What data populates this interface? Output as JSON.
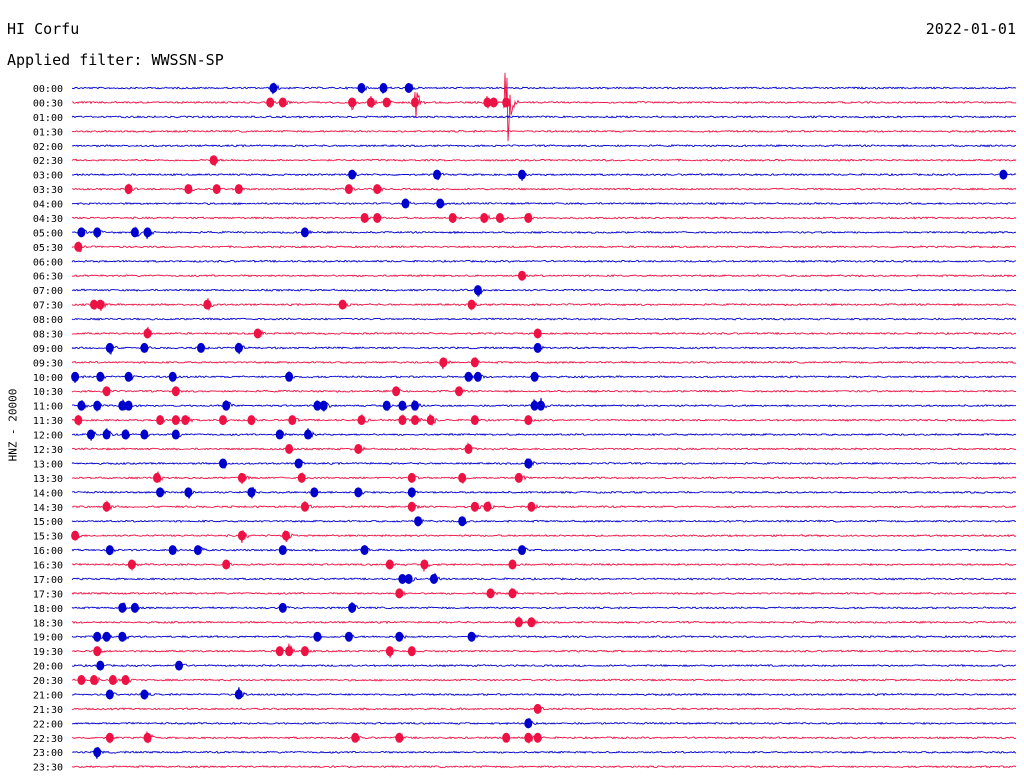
{
  "header": {
    "station": "HI Corfu",
    "date": "2022-01-01",
    "filter_text": "Applied filter: WWSSN-SP"
  },
  "chart_data": {
    "type": "line",
    "subtype": "helicorder",
    "ylabel": "HNZ - 20000",
    "rows": [
      "00:00",
      "00:30",
      "01:00",
      "01:30",
      "02:00",
      "02:30",
      "03:00",
      "03:30",
      "04:00",
      "04:30",
      "05:00",
      "05:30",
      "06:00",
      "06:30",
      "07:00",
      "07:30",
      "08:00",
      "08:30",
      "09:00",
      "09:30",
      "10:00",
      "10:30",
      "11:00",
      "11:30",
      "12:00",
      "12:30",
      "13:00",
      "13:30",
      "14:00",
      "14:30",
      "15:00",
      "15:30",
      "16:00",
      "16:30",
      "17:00",
      "17:30",
      "18:00",
      "18:30",
      "19:00",
      "19:30",
      "20:00",
      "20:30",
      "21:00",
      "21:30",
      "22:00",
      "22:30",
      "23:00",
      "23:30"
    ],
    "colors": [
      "#0000cc",
      "#ee1144"
    ],
    "trace_minutes": 30,
    "events": [
      {
        "row": 0,
        "minutes": [
          6.4,
          9.2,
          9.9,
          10.7
        ]
      },
      {
        "row": 1,
        "minutes": [
          6.3,
          6.7,
          8.9,
          9.5,
          10.0,
          13.2,
          13.4
        ]
      },
      {
        "row": 2,
        "minutes": []
      },
      {
        "row": 3,
        "minutes": []
      },
      {
        "row": 4,
        "minutes": []
      },
      {
        "row": 5,
        "minutes": [
          4.5
        ]
      },
      {
        "row": 6,
        "minutes": [
          8.9,
          11.6,
          14.3,
          29.6
        ]
      },
      {
        "row": 7,
        "minutes": [
          1.8,
          3.7,
          4.6,
          5.3,
          8.8,
          9.7
        ]
      },
      {
        "row": 8,
        "minutes": [
          10.6,
          11.7
        ]
      },
      {
        "row": 9,
        "minutes": [
          9.3,
          9.7,
          12.1,
          13.1,
          13.6,
          14.5
        ]
      },
      {
        "row": 10,
        "minutes": [
          0.3,
          0.8,
          2.0,
          2.4,
          7.4
        ]
      },
      {
        "row": 11,
        "minutes": [
          0.2
        ]
      },
      {
        "row": 12,
        "minutes": []
      },
      {
        "row": 13,
        "minutes": [
          14.3
        ]
      },
      {
        "row": 14,
        "minutes": [
          12.9
        ]
      },
      {
        "row": 15,
        "minutes": [
          0.7,
          0.9,
          4.3,
          8.6,
          12.7
        ]
      },
      {
        "row": 16,
        "minutes": []
      },
      {
        "row": 17,
        "minutes": [
          2.4,
          5.9,
          14.8
        ]
      },
      {
        "row": 18,
        "minutes": [
          1.2,
          2.3,
          4.1,
          5.3,
          14.8
        ]
      },
      {
        "row": 19,
        "minutes": [
          11.8,
          12.8
        ]
      },
      {
        "row": 20,
        "minutes": [
          0.1,
          0.9,
          1.8,
          3.2,
          6.9,
          12.6,
          12.9,
          14.7
        ]
      },
      {
        "row": 21,
        "minutes": [
          1.1,
          3.3,
          10.3,
          12.3
        ]
      },
      {
        "row": 22,
        "minutes": [
          0.3,
          0.8,
          1.6,
          1.8,
          4.9,
          7.8,
          8.0,
          10.0,
          10.5,
          10.9,
          14.7,
          14.9
        ]
      },
      {
        "row": 23,
        "minutes": [
          0.2,
          2.8,
          3.3,
          3.6,
          4.8,
          5.7,
          7.0,
          9.2,
          10.5,
          10.9,
          11.4,
          12.8,
          14.5
        ]
      },
      {
        "row": 24,
        "minutes": [
          0.6,
          1.1,
          1.7,
          2.3,
          3.3,
          6.6,
          7.5
        ]
      },
      {
        "row": 25,
        "minutes": [
          6.9,
          9.1,
          12.6
        ]
      },
      {
        "row": 26,
        "minutes": [
          4.8,
          7.2,
          14.5
        ]
      },
      {
        "row": 27,
        "minutes": [
          2.7,
          5.4,
          7.3,
          10.8,
          12.4,
          14.2
        ]
      },
      {
        "row": 28,
        "minutes": [
          2.8,
          3.7,
          5.7,
          7.7,
          9.1,
          10.8
        ]
      },
      {
        "row": 29,
        "minutes": [
          1.1,
          7.4,
          10.8,
          12.8,
          13.2,
          14.6
        ]
      },
      {
        "row": 30,
        "minutes": [
          11.0,
          12.4
        ]
      },
      {
        "row": 31,
        "minutes": [
          0.1,
          5.4,
          6.8
        ]
      },
      {
        "row": 32,
        "minutes": [
          1.2,
          3.2,
          4.0,
          6.7,
          9.3,
          14.3
        ]
      },
      {
        "row": 33,
        "minutes": [
          1.9,
          4.9,
          10.1,
          11.2,
          14.0
        ]
      },
      {
        "row": 34,
        "minutes": [
          10.5,
          10.7,
          11.5
        ]
      },
      {
        "row": 35,
        "minutes": [
          10.4,
          13.3,
          14.0
        ]
      },
      {
        "row": 36,
        "minutes": [
          1.6,
          2.0,
          6.7,
          8.9
        ]
      },
      {
        "row": 37,
        "minutes": [
          14.2,
          14.6
        ]
      },
      {
        "row": 38,
        "minutes": [
          0.8,
          1.1,
          1.6,
          7.8,
          8.8,
          10.4,
          12.7
        ]
      },
      {
        "row": 39,
        "minutes": [
          0.8,
          6.6,
          6.9,
          7.4,
          10.1,
          10.8
        ]
      },
      {
        "row": 40,
        "minutes": [
          0.9,
          3.4
        ]
      },
      {
        "row": 41,
        "minutes": [
          0.3,
          0.7,
          1.3,
          1.7
        ]
      },
      {
        "row": 42,
        "minutes": [
          1.2,
          2.3,
          5.3
        ]
      },
      {
        "row": 43,
        "minutes": [
          14.8
        ]
      },
      {
        "row": 44,
        "minutes": [
          14.5
        ]
      },
      {
        "row": 45,
        "minutes": [
          1.2,
          2.4,
          9.0,
          10.4,
          13.8,
          14.5,
          14.8
        ]
      },
      {
        "row": 46,
        "minutes": [
          0.8
        ]
      },
      {
        "row": 47,
        "minutes": []
      }
    ],
    "large_events": [
      {
        "row": 1,
        "minute": 10.9,
        "amplitude": "large"
      },
      {
        "row": 1,
        "minute": 13.8,
        "amplitude": "very-large"
      }
    ],
    "grid": false,
    "legend": "none"
  }
}
